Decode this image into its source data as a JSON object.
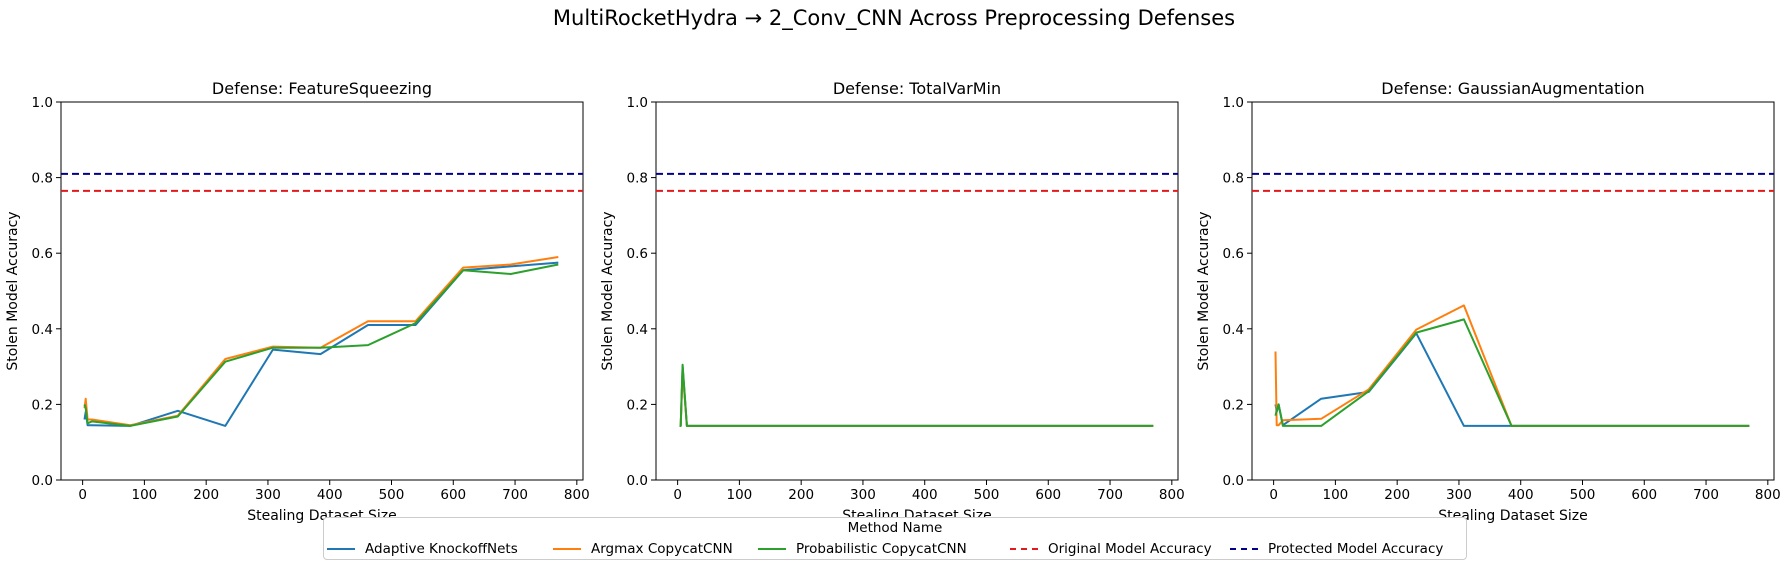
{
  "suptitle": "MultiRocketHydra → 2_Conv_CNN Across Preprocessing Defenses",
  "legend": {
    "title": "Method Name",
    "items": [
      {
        "label": "Adaptive KnockoffNets",
        "color": "#1f77b4",
        "style": "solid"
      },
      {
        "label": "Argmax CopycatCNN",
        "color": "#ff7f0e",
        "style": "solid"
      },
      {
        "label": "Probabilistic CopycatCNN",
        "color": "#2ca02c",
        "style": "solid"
      },
      {
        "label": "Original Model Accuracy",
        "color": "#e31a1c",
        "style": "dashed"
      },
      {
        "label": "Protected Model Accuracy",
        "color": "#00008b",
        "style": "dashed"
      }
    ]
  },
  "chart_data": [
    {
      "type": "line",
      "title": "Defense: FeatureSqueezing",
      "xlabel": "Stealing Dataset Size",
      "ylabel": "Stolen Model Accuracy",
      "xlim": [
        -35,
        810
      ],
      "ylim": [
        0,
        1
      ],
      "xticks": [
        0,
        100,
        200,
        300,
        400,
        500,
        600,
        700,
        800
      ],
      "yticks": [
        "0.0",
        "0.2",
        "0.4",
        "0.6",
        "0.8",
        "1.0"
      ],
      "hlines": [
        {
          "name": "Original Model Accuracy",
          "y": 0.765,
          "color": "#e31a1c"
        },
        {
          "name": "Protected Model Accuracy",
          "y": 0.81,
          "color": "#00008b"
        }
      ],
      "series": [
        {
          "name": "Adaptive KnockoffNets",
          "color": "#1f77b4",
          "x": [
            3,
            5,
            8,
            15,
            77,
            154,
            231,
            308,
            385,
            462,
            539,
            616,
            693,
            770
          ],
          "y": [
            0.16,
            0.18,
            0.145,
            0.145,
            0.143,
            0.183,
            0.143,
            0.345,
            0.333,
            0.41,
            0.41,
            0.555,
            0.565,
            0.575
          ]
        },
        {
          "name": "Argmax CopycatCNN",
          "color": "#ff7f0e",
          "x": [
            3,
            5,
            8,
            15,
            77,
            154,
            231,
            308,
            385,
            462,
            539,
            616,
            693,
            770
          ],
          "y": [
            0.19,
            0.215,
            0.16,
            0.16,
            0.145,
            0.17,
            0.32,
            0.353,
            0.35,
            0.42,
            0.42,
            0.562,
            0.57,
            0.59
          ]
        },
        {
          "name": "Probabilistic CopycatCNN",
          "color": "#2ca02c",
          "x": [
            3,
            5,
            8,
            15,
            77,
            154,
            231,
            308,
            385,
            462,
            539,
            616,
            693,
            770
          ],
          "y": [
            0.2,
            0.19,
            0.15,
            0.155,
            0.143,
            0.168,
            0.313,
            0.35,
            0.35,
            0.357,
            0.415,
            0.555,
            0.545,
            0.57
          ]
        }
      ]
    },
    {
      "type": "line",
      "title": "Defense: TotalVarMin",
      "xlabel": "Stealing Dataset Size",
      "ylabel": "Stolen Model Accuracy",
      "xlim": [
        -35,
        810
      ],
      "ylim": [
        0,
        1
      ],
      "xticks": [
        0,
        100,
        200,
        300,
        400,
        500,
        600,
        700,
        800
      ],
      "yticks": [
        "0.0",
        "0.2",
        "0.4",
        "0.6",
        "0.8",
        "1.0"
      ],
      "hlines": [
        {
          "name": "Original Model Accuracy",
          "y": 0.765,
          "color": "#e31a1c"
        },
        {
          "name": "Protected Model Accuracy",
          "y": 0.81,
          "color": "#00008b"
        }
      ],
      "series": [
        {
          "name": "Adaptive KnockoffNets",
          "color": "#1f77b4",
          "x": [
            3,
            5,
            8,
            15,
            77,
            154,
            231,
            308,
            385,
            462,
            539,
            616,
            693,
            770
          ],
          "y": [
            0.143,
            0.143,
            0.3,
            0.143,
            0.143,
            0.143,
            0.143,
            0.143,
            0.143,
            0.143,
            0.143,
            0.143,
            0.143,
            0.143
          ]
        },
        {
          "name": "Argmax CopycatCNN",
          "color": "#ff7f0e",
          "x": [
            3,
            5,
            8,
            15,
            77,
            154,
            231,
            308,
            385,
            462,
            539,
            616,
            693,
            770
          ],
          "y": [
            0.143,
            0.143,
            0.29,
            0.143,
            0.143,
            0.143,
            0.143,
            0.143,
            0.143,
            0.143,
            0.143,
            0.143,
            0.143,
            0.143
          ]
        },
        {
          "name": "Probabilistic CopycatCNN",
          "color": "#2ca02c",
          "x": [
            3,
            5,
            8,
            15,
            77,
            154,
            231,
            308,
            385,
            462,
            539,
            616,
            693,
            770
          ],
          "y": [
            0.143,
            0.143,
            0.305,
            0.143,
            0.143,
            0.143,
            0.143,
            0.143,
            0.143,
            0.143,
            0.143,
            0.143,
            0.143,
            0.143
          ]
        }
      ]
    },
    {
      "type": "line",
      "title": "Defense: GaussianAugmentation",
      "xlabel": "Stealing Dataset Size",
      "ylabel": "Stolen Model Accuracy",
      "xlim": [
        -35,
        810
      ],
      "ylim": [
        0,
        1
      ],
      "xticks": [
        0,
        100,
        200,
        300,
        400,
        500,
        600,
        700,
        800
      ],
      "yticks": [
        "0.0",
        "0.2",
        "0.4",
        "0.6",
        "0.8",
        "1.0"
      ],
      "hlines": [
        {
          "name": "Original Model Accuracy",
          "y": 0.765,
          "color": "#e31a1c"
        },
        {
          "name": "Protected Model Accuracy",
          "y": 0.81,
          "color": "#00008b"
        }
      ],
      "series": [
        {
          "name": "Adaptive KnockoffNets",
          "color": "#1f77b4",
          "x": [
            3,
            5,
            8,
            15,
            77,
            154,
            231,
            308,
            385,
            462,
            539,
            616,
            693,
            770
          ],
          "y": [
            0.2,
            0.18,
            0.2,
            0.145,
            0.215,
            0.233,
            0.388,
            0.143,
            0.143,
            0.143,
            0.143,
            0.143,
            0.143,
            0.143
          ]
        },
        {
          "name": "Argmax CopycatCNN",
          "color": "#ff7f0e",
          "x": [
            3,
            5,
            8,
            15,
            77,
            154,
            231,
            308,
            385,
            462,
            539,
            616,
            693,
            770
          ],
          "y": [
            0.34,
            0.145,
            0.145,
            0.158,
            0.162,
            0.24,
            0.398,
            0.462,
            0.143,
            0.143,
            0.143,
            0.143,
            0.143,
            0.143
          ]
        },
        {
          "name": "Probabilistic CopycatCNN",
          "color": "#2ca02c",
          "x": [
            3,
            5,
            8,
            15,
            77,
            154,
            231,
            308,
            385,
            462,
            539,
            616,
            693,
            770
          ],
          "y": [
            0.17,
            0.185,
            0.2,
            0.143,
            0.143,
            0.235,
            0.39,
            0.425,
            0.143,
            0.143,
            0.143,
            0.143,
            0.143,
            0.143
          ]
        }
      ]
    }
  ]
}
